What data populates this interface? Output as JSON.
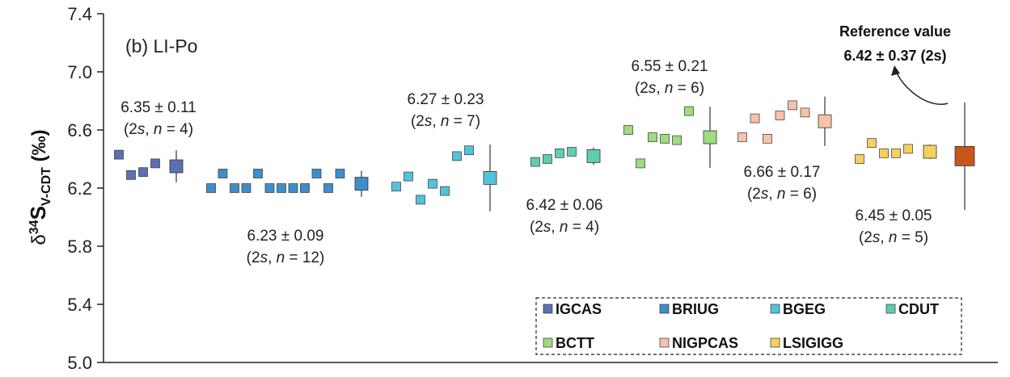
{
  "chart_data": {
    "type": "scatter",
    "panel_label": "(b) LI-Po",
    "ylabel": {
      "delta": "δ",
      "sup": "34",
      "main": "S",
      "sub": "V-CDT",
      "unit": " (‰)"
    },
    "ylim": [
      5.0,
      7.4
    ],
    "yticks": [
      "5.0",
      "5.4",
      "5.8",
      "6.2",
      "6.6",
      "7.0",
      "7.4"
    ],
    "yticks_values": [
      5.0,
      5.4,
      5.8,
      6.2,
      6.6,
      7.0,
      7.4
    ],
    "grid": false,
    "legend_placement": "bottom-right",
    "series": [
      {
        "name": "IGCAS",
        "color": "#5b6fb4",
        "values": [
          6.43,
          6.29,
          6.31,
          6.37
        ],
        "mean": 6.35,
        "err": 0.11,
        "mean_label": "6.35 ± 0.11",
        "n_label": {
          "pre": "(2",
          "s": "s",
          "mid": ", ",
          "n": "n",
          "post": " = 4)"
        }
      },
      {
        "name": "BRIUG",
        "color": "#3e8ec9",
        "values": [
          6.2,
          6.3,
          6.2,
          6.2,
          6.3,
          6.2,
          6.2,
          6.2,
          6.2,
          6.3,
          6.2,
          6.3
        ],
        "mean": 6.23,
        "err": 0.09,
        "mean_label": "6.23 ± 0.09",
        "n_label": {
          "pre": "(2",
          "s": "s",
          "mid": ", ",
          "n": "n",
          "post": " = 12)"
        }
      },
      {
        "name": "BGEG",
        "color": "#55c2dc",
        "values": [
          6.21,
          6.28,
          6.12,
          6.23,
          6.18,
          6.42,
          6.46
        ],
        "mean": 6.27,
        "err": 0.23,
        "mean_label": "6.27 ± 0.23",
        "n_label": {
          "pre": "(2",
          "s": "s",
          "mid": ", ",
          "n": "n",
          "post": " = 7)"
        }
      },
      {
        "name": "CDUT",
        "color": "#5ecdb0",
        "values": [
          6.38,
          6.4,
          6.44,
          6.45
        ],
        "mean": 6.42,
        "err": 0.06,
        "mean_label": "6.42 ± 0.06",
        "n_label": {
          "pre": "(2",
          "s": "s",
          "mid": ", ",
          "n": "n",
          "post": " = 4)"
        }
      },
      {
        "name": "BCTT",
        "color": "#9edb82",
        "values": [
          6.6,
          6.37,
          6.55,
          6.54,
          6.53,
          6.73
        ],
        "mean": 6.55,
        "err": 0.21,
        "mean_label": "6.55 ± 0.21",
        "n_label": {
          "pre": "(2",
          "s": "s",
          "mid": ", ",
          "n": "n",
          "post": " = 6)"
        }
      },
      {
        "name": "NIGPCAS",
        "color": "#f8c2a8",
        "values": [
          6.55,
          6.68,
          6.54,
          6.7,
          6.77,
          6.72
        ],
        "mean": 6.66,
        "err": 0.17,
        "mean_label": "6.66 ± 0.17",
        "n_label": {
          "pre": "(2",
          "s": "s",
          "mid": ", ",
          "n": "n",
          "post": " = 6)"
        }
      },
      {
        "name": "LSIGIGG",
        "color": "#f6cf5e",
        "values": [
          6.4,
          6.51,
          6.44,
          6.44,
          6.47
        ],
        "mean": 6.45,
        "err": 0.05,
        "mean_label": "6.45 ± 0.05",
        "n_label": {
          "pre": "(2",
          "s": "s",
          "mid": ", ",
          "n": "n",
          "post": " = 5)"
        }
      }
    ],
    "reference": {
      "title": "Reference value",
      "value_label": "6.42 ± 0.37 (2s)",
      "mean": 6.42,
      "err": 0.37,
      "color": "#c8561a"
    }
  }
}
